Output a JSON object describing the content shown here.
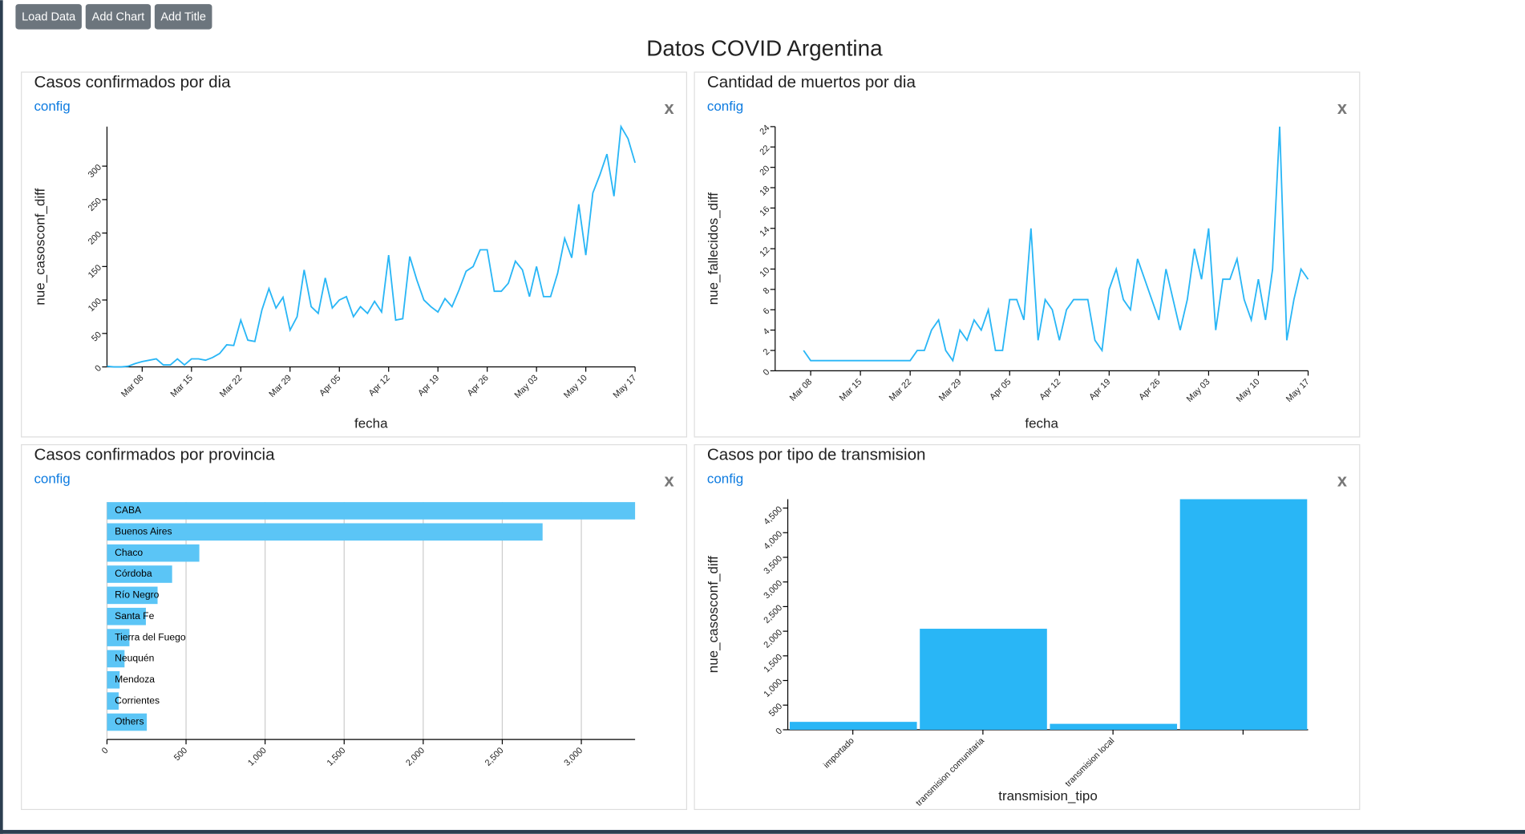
{
  "toolbar": {
    "buttons": [
      "Load Data",
      "Add Chart",
      "Add Title"
    ]
  },
  "title": "Datos COVID Argentina",
  "chart_data": [
    {
      "type": "line",
      "title": "Casos confirmados por dia",
      "link": "config",
      "close": "x",
      "xlabel": "fecha",
      "ylabel": "nue_casosconf_diff",
      "color": "#29b6f6",
      "x": [
        "Mar 03",
        "Mar 04",
        "Mar 05",
        "Mar 06",
        "Mar 07",
        "Mar 08",
        "Mar 09",
        "Mar 10",
        "Mar 11",
        "Mar 12",
        "Mar 13",
        "Mar 14",
        "Mar 15",
        "Mar 16",
        "Mar 17",
        "Mar 18",
        "Mar 19",
        "Mar 20",
        "Mar 21",
        "Mar 22",
        "Mar 23",
        "Mar 24",
        "Mar 25",
        "Mar 26",
        "Mar 27",
        "Mar 28",
        "Mar 29",
        "Mar 30",
        "Mar 31",
        "Apr 01",
        "Apr 02",
        "Apr 03",
        "Apr 04",
        "Apr 05",
        "Apr 06",
        "Apr 07",
        "Apr 08",
        "Apr 09",
        "Apr 10",
        "Apr 11",
        "Apr 12",
        "Apr 13",
        "Apr 14",
        "Apr 15",
        "Apr 16",
        "Apr 17",
        "Apr 18",
        "Apr 19",
        "Apr 20",
        "Apr 21",
        "Apr 22",
        "Apr 23",
        "Apr 24",
        "Apr 25",
        "Apr 26",
        "Apr 27",
        "Apr 28",
        "Apr 29",
        "Apr 30",
        "May 01",
        "May 02",
        "May 03",
        "May 04",
        "May 05",
        "May 06",
        "May 07",
        "May 08",
        "May 09",
        "May 10",
        "May 11",
        "May 12",
        "May 13",
        "May 14",
        "May 15",
        "May 16",
        "May 17"
      ],
      "values": [
        1,
        0,
        0,
        1,
        5,
        8,
        10,
        12,
        3,
        3,
        12,
        3,
        12,
        12,
        10,
        14,
        20,
        33,
        32,
        70,
        40,
        38,
        85,
        117,
        88,
        104,
        55,
        75,
        145,
        90,
        80,
        133,
        88,
        100,
        105,
        75,
        90,
        80,
        98,
        82,
        167,
        70,
        72,
        165,
        130,
        100,
        90,
        82,
        102,
        90,
        115,
        143,
        150,
        175,
        175,
        113,
        113,
        125,
        158,
        145,
        105,
        150,
        105,
        105,
        140,
        192,
        163,
        243,
        167,
        260,
        287,
        318,
        255,
        359,
        341,
        305
      ],
      "xticks": [
        "Mar 08",
        "Mar 15",
        "Mar 22",
        "Mar 29",
        "Apr 05",
        "Apr 12",
        "Apr 19",
        "Apr 26",
        "May 03",
        "May 10",
        "May 17"
      ],
      "ylim": [
        0,
        359
      ],
      "yticks": [
        0,
        50,
        100,
        150,
        200,
        250,
        300
      ]
    },
    {
      "type": "line",
      "title": "Cantidad de muertos por dia",
      "link": "config",
      "close": "x",
      "xlabel": "fecha",
      "ylabel": "nue_fallecidos_diff",
      "color": "#29b6f6",
      "x": [
        "Mar 03",
        "Mar 04",
        "Mar 05",
        "Mar 06",
        "Mar 07",
        "Mar 08",
        "Mar 09",
        "Mar 10",
        "Mar 11",
        "Mar 12",
        "Mar 13",
        "Mar 14",
        "Mar 15",
        "Mar 16",
        "Mar 17",
        "Mar 18",
        "Mar 19",
        "Mar 20",
        "Mar 21",
        "Mar 22",
        "Mar 23",
        "Mar 24",
        "Mar 25",
        "Mar 26",
        "Mar 27",
        "Mar 28",
        "Mar 29",
        "Mar 30",
        "Mar 31",
        "Apr 01",
        "Apr 02",
        "Apr 03",
        "Apr 04",
        "Apr 05",
        "Apr 06",
        "Apr 07",
        "Apr 08",
        "Apr 09",
        "Apr 10",
        "Apr 11",
        "Apr 12",
        "Apr 13",
        "Apr 14",
        "Apr 15",
        "Apr 16",
        "Apr 17",
        "Apr 18",
        "Apr 19",
        "Apr 20",
        "Apr 21",
        "Apr 22",
        "Apr 23",
        "Apr 24",
        "Apr 25",
        "Apr 26",
        "Apr 27",
        "Apr 28",
        "Apr 29",
        "Apr 30",
        "May 01",
        "May 02",
        "May 03",
        "May 04",
        "May 05",
        "May 06",
        "May 07",
        "May 08",
        "May 09",
        "May 10",
        "May 11",
        "May 12",
        "May 13",
        "May 14",
        "May 15",
        "May 16",
        "May 17"
      ],
      "values": [
        null,
        null,
        null,
        null,
        2,
        1,
        1,
        1,
        1,
        1,
        1,
        1,
        1,
        1,
        1,
        1,
        1,
        1,
        1,
        1,
        2,
        2,
        4,
        5,
        2,
        1,
        4,
        3,
        5,
        4,
        6,
        2,
        2,
        7,
        7,
        5,
        14,
        3,
        7,
        6,
        3,
        6,
        7,
        7,
        7,
        3,
        2,
        8,
        10,
        7,
        6,
        11,
        9,
        7,
        5,
        10,
        7,
        4,
        7,
        12,
        9,
        14,
        4,
        9,
        9,
        11,
        7,
        5,
        9,
        5,
        10,
        24,
        3,
        7,
        10,
        9
      ],
      "xticks": [
        "Mar 08",
        "Mar 15",
        "Mar 22",
        "Mar 29",
        "Apr 05",
        "Apr 12",
        "Apr 19",
        "Apr 26",
        "May 03",
        "May 10",
        "May 17"
      ],
      "ylim": [
        0,
        24
      ],
      "yticks": [
        0,
        2,
        4,
        6,
        8,
        10,
        12,
        14,
        16,
        18,
        20,
        22,
        24
      ]
    },
    {
      "type": "bar",
      "orientation": "horizontal",
      "title": "Casos confirmados por provincia",
      "link": "config",
      "close": "x",
      "color": "#5bc5f6",
      "grid": true,
      "categories": [
        "CABA",
        "Buenos Aires",
        "Chaco",
        "Córdoba",
        "Río Negro",
        "Santa Fe",
        "Tierra del Fuego",
        "Neuquén",
        "Mendoza",
        "Corrientes",
        "Others"
      ],
      "values": [
        3340,
        2755,
        584,
        412,
        320,
        246,
        142,
        111,
        80,
        74,
        252
      ],
      "xlim": [
        0,
        3340
      ],
      "xticks": [
        0,
        500,
        {
          "value": 1000,
          "label": "1,000"
        },
        {
          "value": 1500,
          "label": "1,500"
        },
        {
          "value": 2000,
          "label": "2,000"
        },
        {
          "value": 2500,
          "label": "2,500"
        },
        {
          "value": 3000,
          "label": "3,000"
        }
      ]
    },
    {
      "type": "bar",
      "orientation": "vertical",
      "title": "Casos por tipo de transmision",
      "link": "config",
      "close": "x",
      "xlabel": "transmision_tipo",
      "ylabel": "nue_casosconf_diff",
      "color": "#29b6f6",
      "categories": [
        "importado",
        "transmision comunitaria",
        "transmision local",
        null
      ],
      "values": [
        160,
        2050,
        120,
        4680
      ],
      "ylim": [
        0,
        4680
      ],
      "yticks": [
        0,
        500,
        {
          "value": 1000,
          "label": "1,000"
        },
        {
          "value": 1500,
          "label": "1,500"
        },
        {
          "value": 2000,
          "label": "2,000"
        },
        {
          "value": 2500,
          "label": "2,500"
        },
        {
          "value": 3000,
          "label": "3,000"
        },
        {
          "value": 3500,
          "label": "3,500"
        },
        {
          "value": 4000,
          "label": "4,000"
        },
        {
          "value": 4500,
          "label": "4,500"
        }
      ]
    }
  ]
}
